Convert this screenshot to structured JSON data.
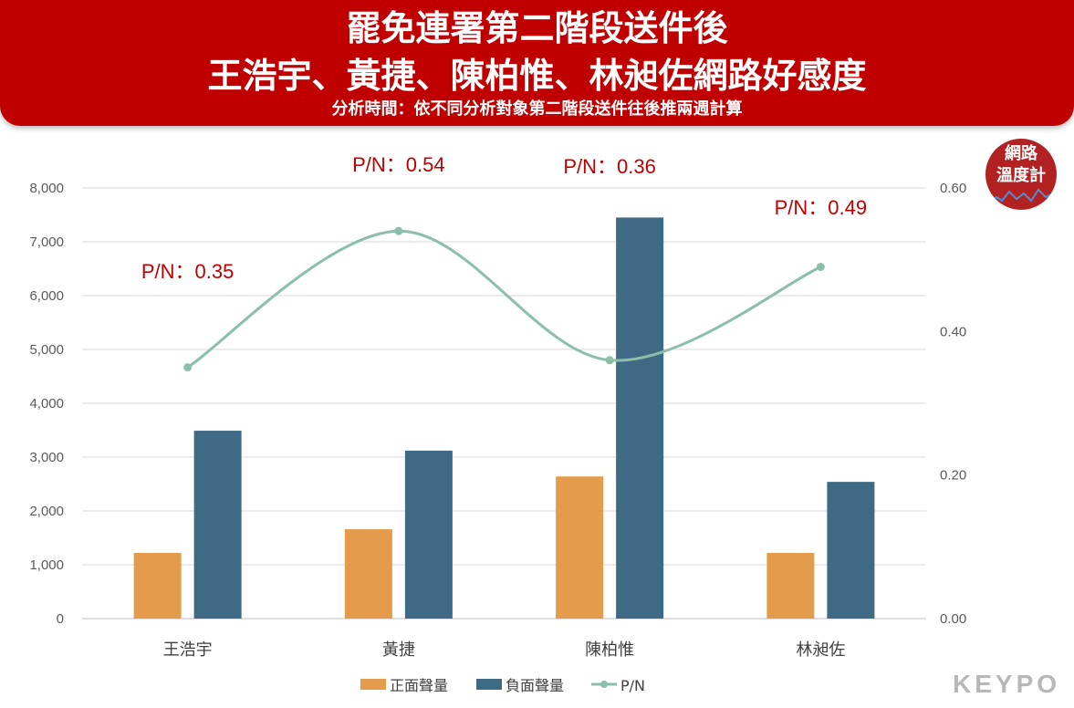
{
  "header": {
    "title_line1": "罷免連署第二階段送件後",
    "title_line2": "王浩宇、黃捷、陳柏惟、林昶佐網路好感度",
    "subtitle": "分析時間：依不同分析對象第二階段送件往後推兩週計算"
  },
  "badge": {
    "line1": "網路",
    "line2": "溫度計"
  },
  "brand": {
    "logo_text": "KEYPO"
  },
  "colors": {
    "positive": "#e59b4c",
    "negative": "#3e6a85",
    "pn_line": "#8cbfa9",
    "annotation": "#c00000",
    "banner": "#c00000"
  },
  "chart_data": {
    "type": "bar",
    "categories": [
      "王浩宇",
      "黃捷",
      "陳柏惟",
      "林昶佐"
    ],
    "series": [
      {
        "name": "正面聲量",
        "type": "bar",
        "axis": "left",
        "values": [
          1220,
          1660,
          2640,
          1220
        ]
      },
      {
        "name": "負面聲量",
        "type": "bar",
        "axis": "left",
        "values": [
          3490,
          3120,
          7450,
          2540
        ]
      },
      {
        "name": "P/N",
        "type": "line",
        "axis": "right",
        "smooth": true,
        "values": [
          0.35,
          0.54,
          0.36,
          0.49
        ]
      }
    ],
    "annotations": [
      "P/N：0.35",
      "P/N：0.54",
      "P/N：0.36",
      "P/N：0.49"
    ],
    "y_left": {
      "ylim": [
        0,
        8000
      ],
      "ticks": [
        "0",
        "1,000",
        "2,000",
        "3,000",
        "4,000",
        "5,000",
        "6,000",
        "7,000",
        "8,000"
      ]
    },
    "y_right": {
      "ylim": [
        0,
        0.6
      ],
      "ticks": [
        "0.00",
        "0.20",
        "0.40",
        "0.60"
      ]
    },
    "grid": true,
    "legend_position": "bottom"
  }
}
